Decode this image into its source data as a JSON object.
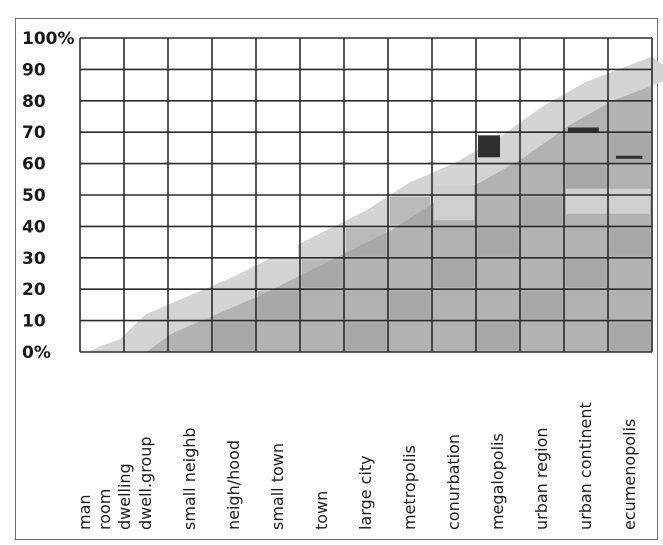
{
  "chart_data": {
    "type": "area",
    "title": "",
    "xlabel": "",
    "ylabel": "",
    "y_tick_labels": [
      "0%",
      "10",
      "20",
      "30",
      "40",
      "50",
      "60",
      "70",
      "80",
      "90",
      "100%"
    ],
    "ylim": [
      0,
      100
    ],
    "categories": [
      "man",
      "room",
      "dwelling",
      "dwell.group",
      "small neighb",
      "neigh/hood",
      "small town",
      "town",
      "large city",
      "metropolis",
      "conurbation",
      "megalopolis",
      "urban region",
      "urban continent",
      "ecumenopolis"
    ],
    "category_columns": [
      0,
      0,
      0,
      1,
      2,
      3,
      4,
      5,
      6,
      7,
      8,
      9,
      10,
      11,
      12
    ],
    "column_count": 13,
    "series": [
      {
        "values": [
          0,
          2,
          4,
          12,
          18,
          24,
          31,
          38,
          45,
          54,
          60,
          68,
          78,
          86,
          94
        ]
      }
    ],
    "grid": true,
    "legend": "none",
    "colors": {
      "area": "#b2b2b2",
      "area_dark": "#9c9c9c",
      "grid": "#2b2b2b",
      "frame": "#6e6e6e",
      "marker": "#2f2f2f"
    }
  }
}
